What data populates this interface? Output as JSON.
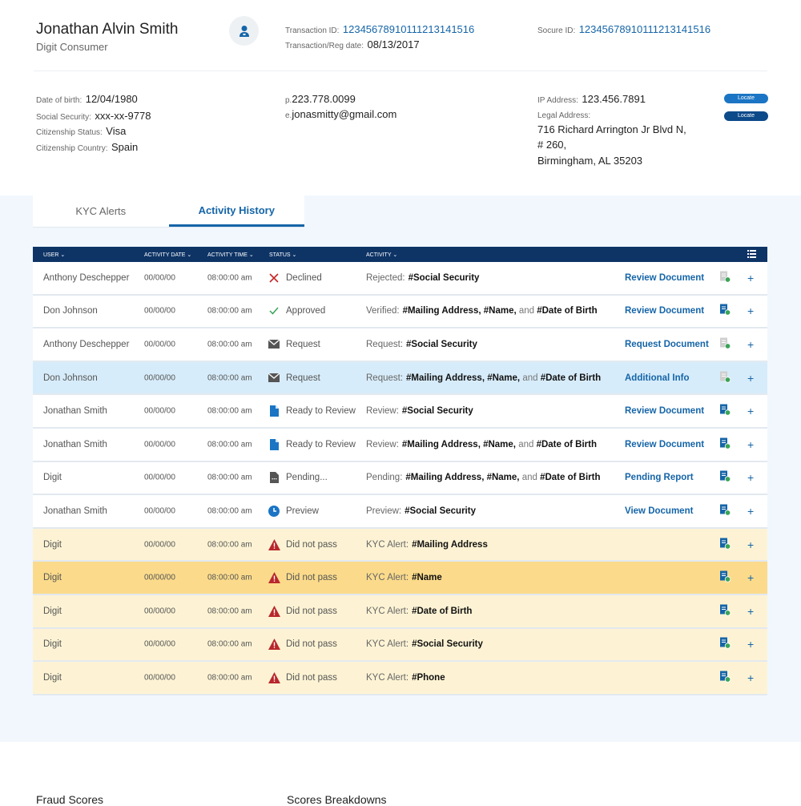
{
  "profile": {
    "name": "Jonathan Alvin Smith",
    "type": "Digit Consumer",
    "transaction_id_label": "Transaction ID:",
    "transaction_id": "12345678910111213141516",
    "reg_date_label": "Transaction/Reg date:",
    "reg_date": "08/13/2017",
    "socure_id_label": "Socure ID:",
    "socure_id": "12345678910111213141516",
    "dob_label": "Date of birth:",
    "dob": "12/04/1980",
    "ssn_label": "Social Security:",
    "ssn": "xxx-xx-9778",
    "cit_status_label": "Citizenship Status:",
    "cit_status": "Visa",
    "cit_country_label": "Citizenship Country:",
    "cit_country": "Spain",
    "phone_label": "p.",
    "phone": "223.778.0099",
    "email_label": "e.",
    "email": "jonasmitty@gmail.com",
    "ip_label": "IP Address:",
    "ip": "123.456.7891",
    "legal_label": "Legal Address:",
    "address_lines": [
      "716 Richard Arrington Jr Blvd N,",
      "# 260,",
      "Birmingham, AL 35203"
    ],
    "locate_label": "Locate"
  },
  "colors": {
    "accent": "#1565a8",
    "navy": "#0e3466",
    "locate_light": "#1b75c4",
    "locate_dark": "#0d4a8a",
    "declined": "#c62828",
    "approved": "#3aa357",
    "alert": "#c62828"
  },
  "tabs": [
    {
      "label": "KYC Alerts",
      "active": false
    },
    {
      "label": "Activity History",
      "active": true
    }
  ],
  "table": {
    "columns": [
      "USER",
      "ACTIVITY DATE",
      "ACTIVITY TIME",
      "STATUS",
      "ACTIVITY"
    ],
    "rows": [
      {
        "user": "Anthony Deschepper",
        "date": "00/00/00",
        "time": "08:00:00 am",
        "icon": "x-icon",
        "status": "Declined",
        "prefix": "Rejected:",
        "parts": [
          {
            "t": "#Social Security",
            "b": true
          }
        ],
        "link": "Review Document",
        "doc": "grey",
        "style": ""
      },
      {
        "user": "Don Johnson",
        "date": "00/00/00",
        "time": "08:00:00 am",
        "icon": "check-icon",
        "status": "Approved",
        "prefix": "Verified:",
        "parts": [
          {
            "t": "#Mailing Address, #Name,",
            "b": true
          },
          {
            "t": " and ",
            "b": false
          },
          {
            "t": "#Date of Birth",
            "b": true
          }
        ],
        "link": "Review Document",
        "doc": "blue",
        "style": ""
      },
      {
        "user": "Anthony Deschepper",
        "date": "00/00/00",
        "time": "08:00:00 am",
        "icon": "mail-icon",
        "status": "Request",
        "prefix": "Request:",
        "parts": [
          {
            "t": "#Social Security",
            "b": true
          }
        ],
        "link": "Request Document",
        "doc": "grey",
        "style": ""
      },
      {
        "user": "Don Johnson",
        "date": "00/00/00",
        "time": "08:00:00 am",
        "icon": "mail-icon",
        "status": "Request",
        "prefix": "Request:",
        "parts": [
          {
            "t": "#Mailing Address, #Name,",
            "b": true
          },
          {
            "t": " and ",
            "b": false
          },
          {
            "t": "#Date of Birth",
            "b": true
          }
        ],
        "link": "Additional Info",
        "doc": "grey",
        "style": "sel"
      },
      {
        "user": "Jonathan Smith",
        "date": "00/00/00",
        "time": "08:00:00 am",
        "icon": "document-icon",
        "status": "Ready to Review",
        "prefix": "Review:",
        "parts": [
          {
            "t": "#Social Security",
            "b": true
          }
        ],
        "link": "Review Document",
        "doc": "blue",
        "style": ""
      },
      {
        "user": "Jonathan Smith",
        "date": "00/00/00",
        "time": "08:00:00 am",
        "icon": "document-icon",
        "status": "Ready to Review",
        "prefix": "Review:",
        "parts": [
          {
            "t": "#Mailing Address, #Name,",
            "b": true
          },
          {
            "t": " and ",
            "b": false
          },
          {
            "t": "#Date of Birth",
            "b": true
          }
        ],
        "link": "Review Document",
        "doc": "blue",
        "style": ""
      },
      {
        "user": "Digit",
        "date": "00/00/00",
        "time": "08:00:00 am",
        "icon": "pending-document-icon",
        "status": "Pending...",
        "prefix": "Pending:",
        "parts": [
          {
            "t": "#Mailing Address, #Name,",
            "b": true
          },
          {
            "t": " and ",
            "b": false
          },
          {
            "t": "#Date of Birth",
            "b": true
          }
        ],
        "link": "Pending Report",
        "doc": "blue",
        "style": ""
      },
      {
        "user": "Jonathan Smith",
        "date": "00/00/00",
        "time": "08:00:00 am",
        "icon": "clock-icon",
        "status": "Preview",
        "prefix": "Preview:",
        "parts": [
          {
            "t": "#Social Security",
            "b": true
          }
        ],
        "link": "View Document",
        "doc": "blue",
        "style": ""
      },
      {
        "user": "Digit",
        "date": "00/00/00",
        "time": "08:00:00 am",
        "icon": "warning-icon",
        "status": "Did not pass",
        "prefix": "KYC Alert:",
        "parts": [
          {
            "t": "#Mailing Address",
            "b": true
          }
        ],
        "link": "",
        "doc": "blue",
        "style": "kyc"
      },
      {
        "user": "Digit",
        "date": "00/00/00",
        "time": "08:00:00 am",
        "icon": "warning-icon",
        "status": "Did not pass",
        "prefix": "KYC Alert:",
        "parts": [
          {
            "t": "#Name",
            "b": true
          }
        ],
        "link": "",
        "doc": "blue",
        "style": "kyc-hl"
      },
      {
        "user": "Digit",
        "date": "00/00/00",
        "time": "08:00:00 am",
        "icon": "warning-icon",
        "status": "Did not pass",
        "prefix": "KYC Alert:",
        "parts": [
          {
            "t": "#Date of Birth",
            "b": true
          }
        ],
        "link": "",
        "doc": "blue",
        "style": "kyc"
      },
      {
        "user": "Digit",
        "date": "00/00/00",
        "time": "08:00:00 am",
        "icon": "warning-icon",
        "status": "Did not pass",
        "prefix": "KYC Alert:",
        "parts": [
          {
            "t": "#Social Security",
            "b": true
          }
        ],
        "link": "",
        "doc": "blue",
        "style": "kyc"
      },
      {
        "user": "Digit",
        "date": "00/00/00",
        "time": "08:00:00 am",
        "icon": "warning-icon",
        "status": "Did not pass",
        "prefix": "KYC Alert:",
        "parts": [
          {
            "t": "#Phone",
            "b": true
          }
        ],
        "link": "",
        "doc": "blue",
        "style": "kyc"
      }
    ]
  },
  "sections": {
    "fraud_scores": "Fraud Scores",
    "scores_breakdowns": "Scores Breakdowns"
  }
}
